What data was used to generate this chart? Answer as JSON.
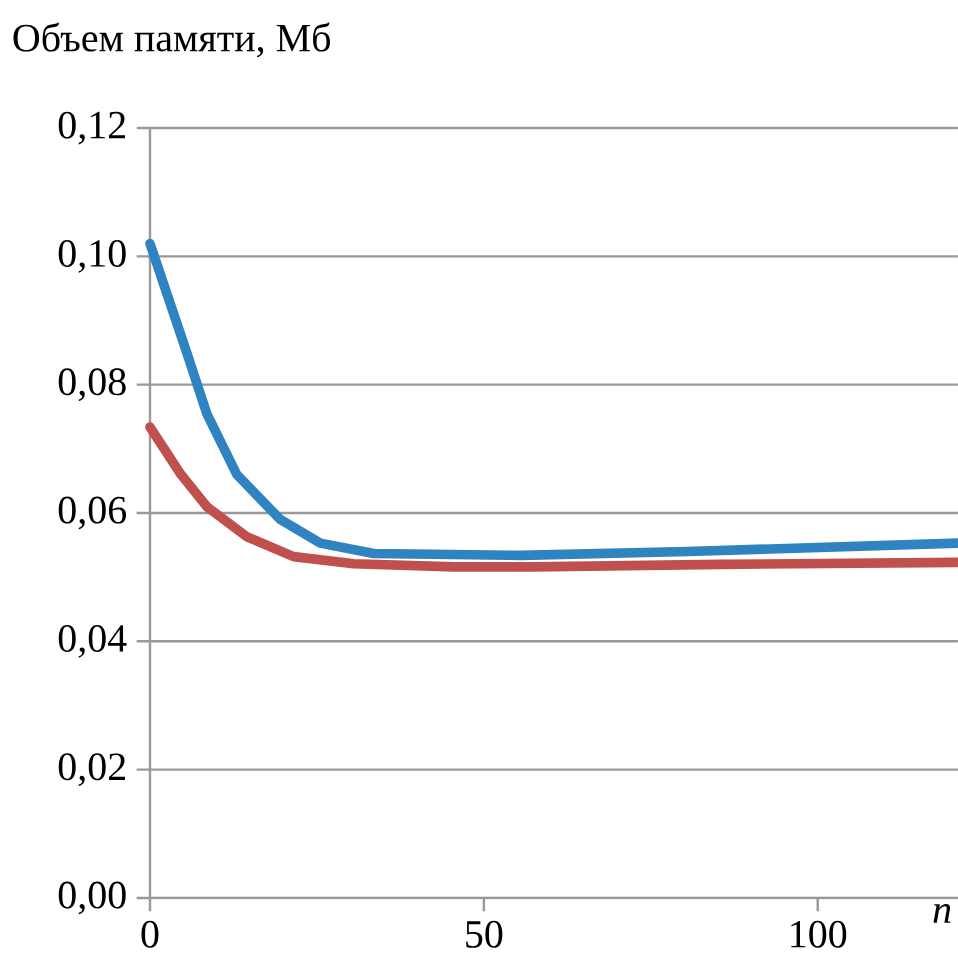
{
  "chart_data": {
    "type": "line",
    "ylabel": "Объем памяти, Мб",
    "xlabel": "n",
    "xlim": [
      0,
      121
    ],
    "xticks": [
      0,
      50,
      100
    ],
    "ylim": [
      0,
      0.12
    ],
    "yticks": [
      {
        "value": 0,
        "label": "0,00"
      },
      {
        "value": 0.02,
        "label": "0,02"
      },
      {
        "value": 0.04,
        "label": "0,04"
      },
      {
        "value": 0.06,
        "label": "0,06"
      },
      {
        "value": 0.08,
        "label": "0,08"
      },
      {
        "value": 0.1,
        "label": "0,10"
      },
      {
        "value": 0.12,
        "label": "0,12"
      }
    ],
    "grid": "y",
    "marker": "none",
    "line_style": "solid",
    "series": [
      {
        "color": "#2e83c0",
        "x": [
          0,
          5.5,
          8.5,
          13,
          19.5,
          25.5,
          33.5,
          55.5,
          80.5,
          121
        ],
        "values": [
          0.102,
          0.085,
          0.0755,
          0.066,
          0.059,
          0.0553,
          0.0537,
          0.0534,
          0.054,
          0.0553
        ]
      },
      {
        "color": "#c0504d",
        "x": [
          0,
          4.5,
          8.5,
          14.5,
          21.5,
          30.5,
          45.5,
          57.5,
          85.5,
          121
        ],
        "values": [
          0.0734,
          0.0662,
          0.061,
          0.0563,
          0.0532,
          0.0521,
          0.0516,
          0.0516,
          0.052,
          0.0523
        ]
      }
    ]
  }
}
